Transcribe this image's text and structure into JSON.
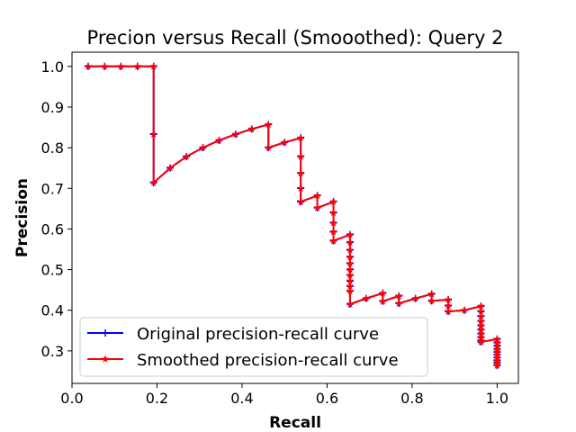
{
  "chart_data": {
    "type": "line",
    "title": "Precion versus Recall (Smooothed): Query 2",
    "xlabel": "Recall",
    "ylabel": "Precision",
    "xlim": [
      0.0,
      1.05
    ],
    "ylim": [
      0.22,
      1.035
    ],
    "xticks": [
      0.0,
      0.2,
      0.4,
      0.6,
      0.8,
      1.0
    ],
    "xtick_labels": [
      "0.0",
      "0.2",
      "0.4",
      "0.6",
      "0.8",
      "1.0"
    ],
    "yticks": [
      0.3,
      0.4,
      0.5,
      0.6,
      0.7,
      0.8,
      0.9,
      1.0
    ],
    "ytick_labels": [
      "0.3",
      "0.4",
      "0.5",
      "0.6",
      "0.7",
      "0.8",
      "0.9",
      "1.0"
    ],
    "legend_position": "bottom-left",
    "series": [
      {
        "name": "Original precision-recall curve",
        "color": "#0000ff",
        "marker": "plus",
        "x": [
          0.038,
          0.077,
          0.115,
          0.154,
          0.192,
          0.192,
          0.192,
          0.231,
          0.269,
          0.308,
          0.346,
          0.385,
          0.423,
          0.462,
          0.462,
          0.5,
          0.538,
          0.538,
          0.538,
          0.538,
          0.538,
          0.538,
          0.577,
          0.577,
          0.615,
          0.615,
          0.615,
          0.615,
          0.615,
          0.615,
          0.654,
          0.654,
          0.654,
          0.654,
          0.654,
          0.654,
          0.654,
          0.654,
          0.654,
          0.654,
          0.654,
          0.692,
          0.731,
          0.731,
          0.769,
          0.769,
          0.808,
          0.846,
          0.846,
          0.885,
          0.885,
          0.885,
          0.923,
          0.962,
          0.962,
          0.962,
          0.962,
          0.962,
          0.962,
          0.962,
          0.962,
          0.962,
          0.962,
          1.0,
          1.0,
          1.0,
          1.0,
          1.0,
          1.0,
          1.0,
          1.0,
          1.0,
          1.0
        ],
        "y": [
          1.0,
          1.0,
          1.0,
          1.0,
          1.0,
          0.833,
          0.714,
          0.75,
          0.778,
          0.8,
          0.818,
          0.833,
          0.846,
          0.857,
          0.8,
          0.813,
          0.824,
          0.778,
          0.737,
          0.7,
          0.667,
          0.667,
          0.682,
          0.652,
          0.667,
          0.64,
          0.615,
          0.593,
          0.571,
          0.571,
          0.586,
          0.567,
          0.548,
          0.531,
          0.515,
          0.5,
          0.486,
          0.472,
          0.459,
          0.447,
          0.415,
          0.429,
          0.442,
          0.422,
          0.435,
          0.417,
          0.429,
          0.44,
          0.423,
          0.426,
          0.411,
          0.397,
          0.4,
          0.41,
          0.397,
          0.385,
          0.373,
          0.362,
          0.352,
          0.342,
          0.333,
          0.325,
          0.322,
          0.329,
          0.32,
          0.312,
          0.304,
          0.297,
          0.29,
          0.283,
          0.276,
          0.27,
          0.264
        ]
      },
      {
        "name": "Smoothed precision-recall curve",
        "color": "#ff0000",
        "marker": "star",
        "x": [
          0.038,
          0.077,
          0.115,
          0.154,
          0.192,
          0.192,
          0.192,
          0.231,
          0.269,
          0.308,
          0.346,
          0.385,
          0.423,
          0.462,
          0.462,
          0.5,
          0.538,
          0.538,
          0.538,
          0.538,
          0.538,
          0.538,
          0.577,
          0.577,
          0.615,
          0.615,
          0.615,
          0.615,
          0.615,
          0.615,
          0.654,
          0.654,
          0.654,
          0.654,
          0.654,
          0.654,
          0.654,
          0.654,
          0.654,
          0.654,
          0.654,
          0.692,
          0.731,
          0.731,
          0.769,
          0.769,
          0.808,
          0.846,
          0.846,
          0.885,
          0.885,
          0.885,
          0.923,
          0.962,
          0.962,
          0.962,
          0.962,
          0.962,
          0.962,
          0.962,
          0.962,
          0.962,
          0.962,
          1.0,
          1.0,
          1.0,
          1.0,
          1.0,
          1.0,
          1.0,
          1.0,
          1.0,
          1.0
        ],
        "y": [
          1.0,
          1.0,
          1.0,
          1.0,
          1.0,
          0.833,
          0.714,
          0.75,
          0.778,
          0.8,
          0.818,
          0.833,
          0.846,
          0.857,
          0.8,
          0.813,
          0.824,
          0.778,
          0.737,
          0.7,
          0.667,
          0.667,
          0.682,
          0.652,
          0.667,
          0.64,
          0.615,
          0.593,
          0.571,
          0.571,
          0.586,
          0.567,
          0.548,
          0.531,
          0.515,
          0.5,
          0.486,
          0.472,
          0.459,
          0.447,
          0.415,
          0.429,
          0.442,
          0.422,
          0.435,
          0.417,
          0.429,
          0.44,
          0.423,
          0.426,
          0.411,
          0.397,
          0.4,
          0.41,
          0.397,
          0.385,
          0.373,
          0.362,
          0.352,
          0.342,
          0.333,
          0.325,
          0.322,
          0.329,
          0.32,
          0.312,
          0.304,
          0.297,
          0.29,
          0.283,
          0.276,
          0.27,
          0.264
        ]
      }
    ]
  }
}
